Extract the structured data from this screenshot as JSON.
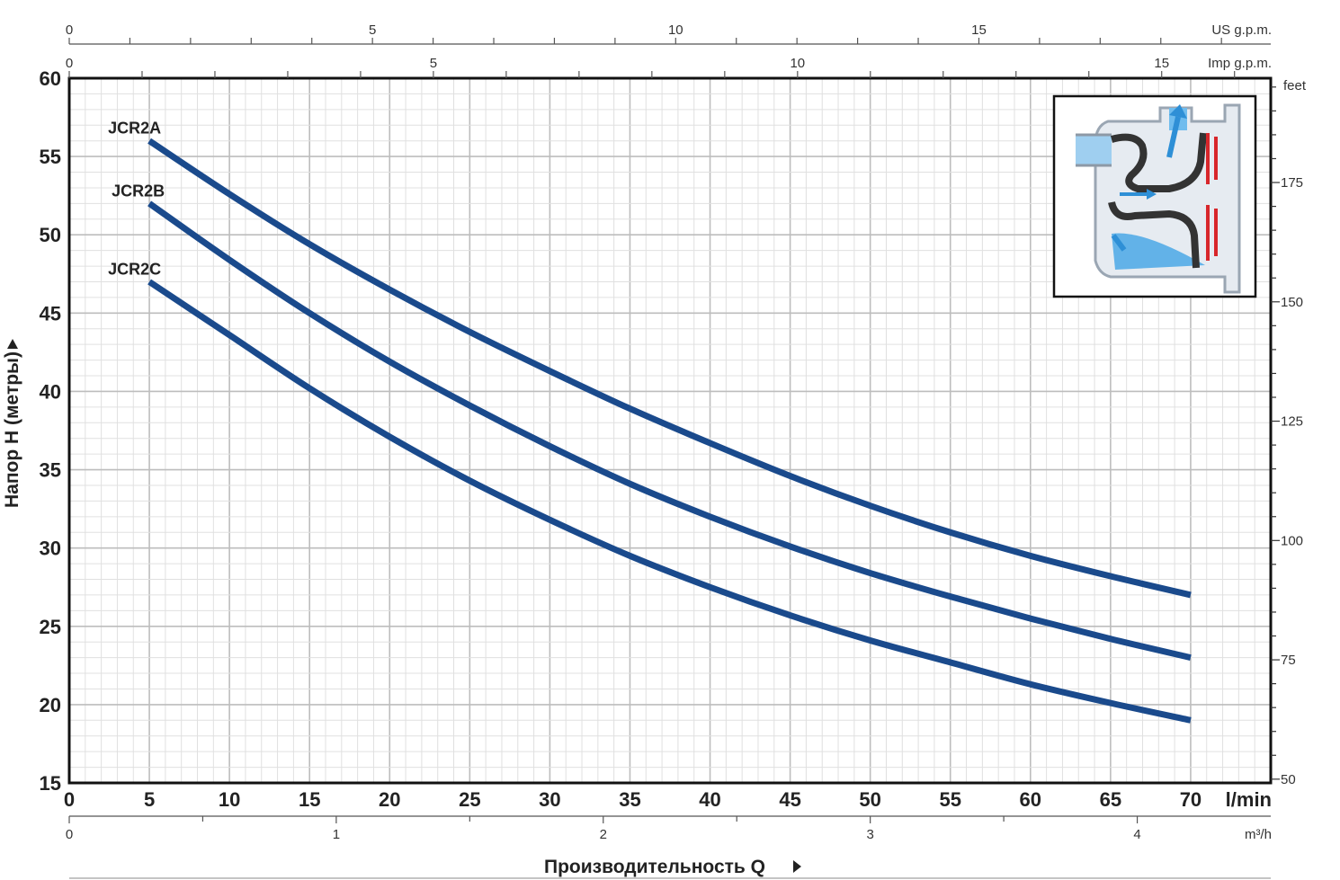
{
  "chart_data": {
    "type": "line",
    "title": "",
    "xlabel": "Производительность Q",
    "ylabel": "Напор H (метры)",
    "x_unit": "l/min",
    "y_unit": "m",
    "xlim": [
      0,
      75
    ],
    "ylim": [
      15,
      60
    ],
    "x_ticks": [
      "0",
      "5",
      "10",
      "15",
      "20",
      "25",
      "30",
      "35",
      "40",
      "45",
      "50",
      "55",
      "60",
      "65",
      "70"
    ],
    "y_ticks": [
      "15",
      "20",
      "25",
      "30",
      "35",
      "40",
      "45",
      "50",
      "55",
      "60"
    ],
    "grid": true,
    "series": [
      {
        "name": "JCR2A",
        "color": "#1a4a8c",
        "x": [
          5,
          10,
          15,
          20,
          25,
          30,
          35,
          40,
          45,
          50,
          55,
          60,
          65,
          70
        ],
        "y": [
          56,
          52.6,
          49.4,
          46.5,
          43.8,
          41.3,
          38.9,
          36.7,
          34.6,
          32.7,
          31.0,
          29.5,
          28.2,
          27.0
        ]
      },
      {
        "name": "JCR2B",
        "color": "#1a4a8c",
        "x": [
          5,
          10,
          15,
          20,
          25,
          30,
          35,
          40,
          45,
          50,
          55,
          60,
          65,
          70
        ],
        "y": [
          52,
          48.4,
          45.0,
          41.9,
          39.1,
          36.5,
          34.1,
          32.0,
          30.1,
          28.4,
          26.9,
          25.5,
          24.2,
          23.0
        ]
      },
      {
        "name": "JCR2C",
        "color": "#1a4a8c",
        "x": [
          5,
          10,
          15,
          20,
          25,
          30,
          35,
          40,
          45,
          50,
          55,
          60,
          65,
          70
        ],
        "y": [
          47,
          43.6,
          40.2,
          37.1,
          34.3,
          31.8,
          29.5,
          27.5,
          25.7,
          24.1,
          22.7,
          21.3,
          20.1,
          19.0
        ]
      }
    ],
    "secondary_axes": {
      "us_gpm": {
        "unit": "US g.p.m.",
        "ticks": [
          "0",
          "5",
          "10",
          "15"
        ]
      },
      "imp_gpm": {
        "unit": "Imp g.p.m.",
        "ticks": [
          "0",
          "5",
          "10",
          "15"
        ]
      },
      "feet": {
        "unit": "feet",
        "ticks": [
          "50",
          "75",
          "100",
          "125",
          "150",
          "175"
        ]
      },
      "m3h": {
        "unit": "m³/h",
        "ticks": [
          "0",
          "1",
          "2",
          "3",
          "4"
        ]
      }
    },
    "inset": "pump cross-section diagram"
  }
}
